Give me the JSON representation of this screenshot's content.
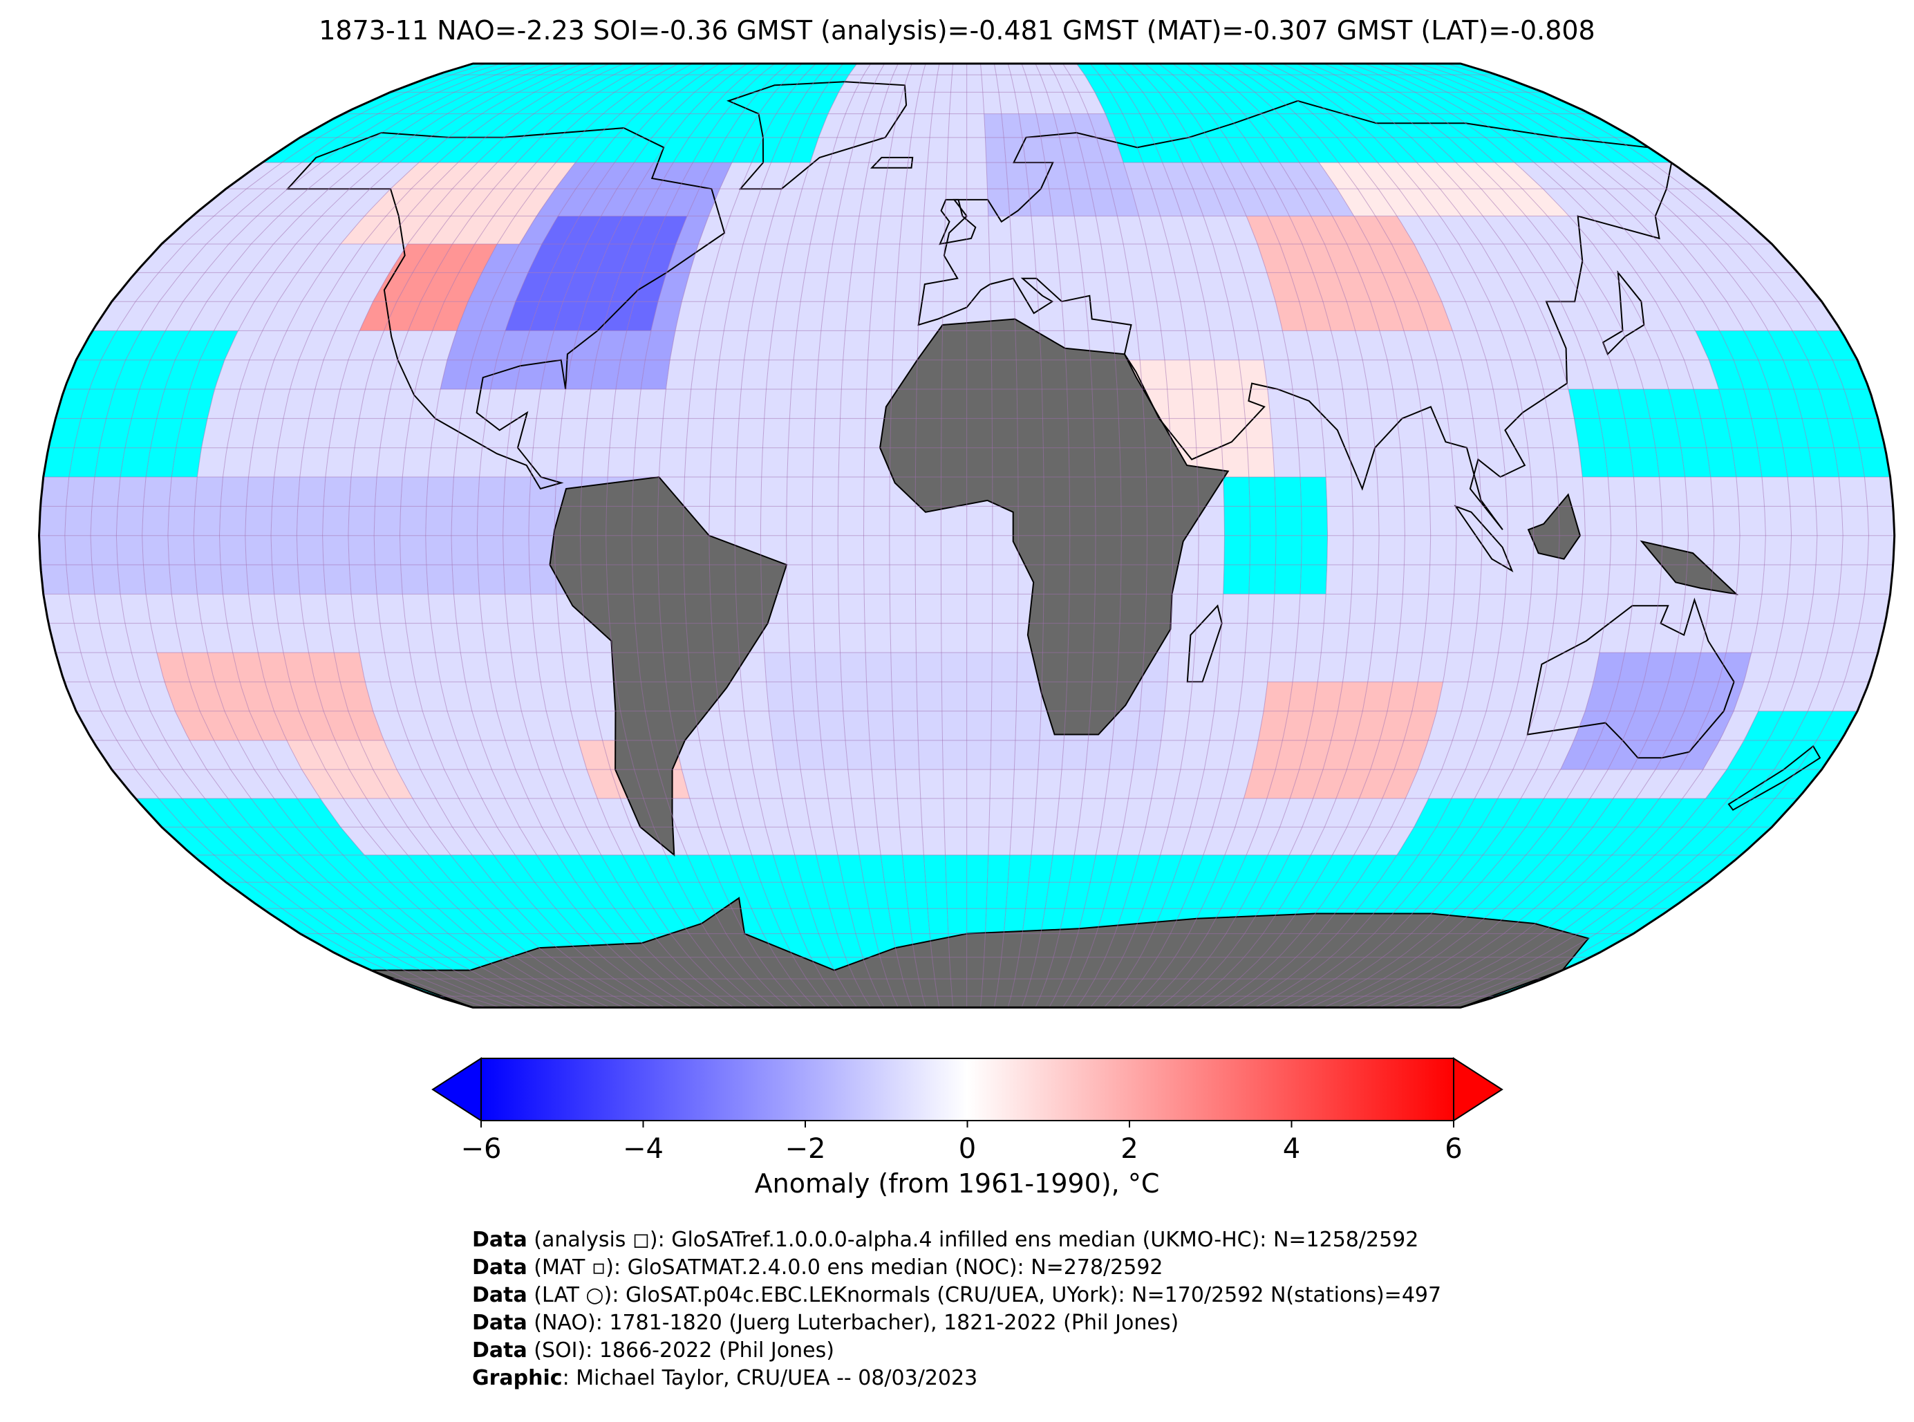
{
  "title": "1873-11 NAO=-2.23 SOI=-0.36 GMST (analysis)=-0.481 GMST (MAT)=-0.307 GMST (LAT)=-0.808",
  "colors": {
    "ocean_missing": "#00ffff",
    "land_missing": "#696969",
    "neutral": "#f4f2fb",
    "cold_max": "#0000ff",
    "warm_max": "#ff0000",
    "grid": "#a070b0",
    "coast": "#000000"
  },
  "colorbar": {
    "min": -6,
    "max": 6,
    "ticks": [
      "−6",
      "−4",
      "−2",
      "0",
      "2",
      "4",
      "6"
    ],
    "tick_values": [
      -6,
      -4,
      -2,
      0,
      2,
      4,
      6
    ],
    "label": "Anomaly (from 1961-1990), °C",
    "extend": "both",
    "colormap": "bwr"
  },
  "map": {
    "projection": "Robinson",
    "grid_spacing_deg": 5,
    "features": [
      {
        "name": "north-america-cold-anomaly",
        "kind": "anomaly",
        "value": -3.5
      },
      {
        "name": "western-north-america-warm-anomaly",
        "kind": "anomaly",
        "value": 2.5
      },
      {
        "name": "europe-cold-anomaly",
        "kind": "anomaly",
        "value": -1.5
      },
      {
        "name": "central-asia-warm-anomaly",
        "kind": "anomaly",
        "value": 1.5
      },
      {
        "name": "australia-cold-anomaly",
        "kind": "anomaly",
        "value": -2
      },
      {
        "name": "south-pacific-warm-anomaly",
        "kind": "anomaly",
        "value": 1.5
      },
      {
        "name": "south-indian-warm-anomaly",
        "kind": "anomaly",
        "value": 1.5
      }
    ]
  },
  "footer": [
    {
      "bold": "Data",
      "text": " (analysis ◻): GloSATref.1.0.0.0-alpha.4 infilled ens median (UKMO-HC): N=1258/2592"
    },
    {
      "bold": "Data",
      "text": " (MAT ▫): GloSATMAT.2.4.0.0 ens median (NOC): N=278/2592"
    },
    {
      "bold": "Data",
      "text": " (LAT ○): GloSAT.p04c.EBC.LEKnormals (CRU/UEA, UYork): N=170/2592 N(stations)=497"
    },
    {
      "bold": "Data",
      "text": " (NAO): 1781-1820 (Juerg Luterbacher), 1821-2022 (Phil Jones)"
    },
    {
      "bold": "Data",
      "text": " (SOI): 1866-2022 (Phil Jones)"
    },
    {
      "bold": "Graphic",
      "text": ": Michael Taylor, CRU/UEA -- 08/03/2023"
    }
  ]
}
